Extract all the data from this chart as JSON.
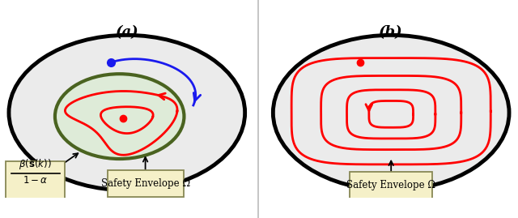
{
  "fig_width": 6.4,
  "fig_height": 2.69,
  "dpi": 100,
  "bg_color": "#ffffff",
  "panel_a_title": "(a)",
  "panel_b_title": "(b)",
  "outer_ellipse_color": "#000000",
  "outer_ellipse_lw": 3.5,
  "outer_ellipse_fill": "#ebebeb",
  "green_ellipse_color": "#4a6320",
  "green_ellipse_lw": 3.0,
  "green_ellipse_fill": "#deebd8",
  "red_color": "#ff0000",
  "blue_color": "#1a1aee",
  "annotation_box_color": "#f5f0c8",
  "annotation_box_edge": "#999966",
  "safety_label": "Safety Envelope Ω",
  "divider_color": "#bbbbbb"
}
